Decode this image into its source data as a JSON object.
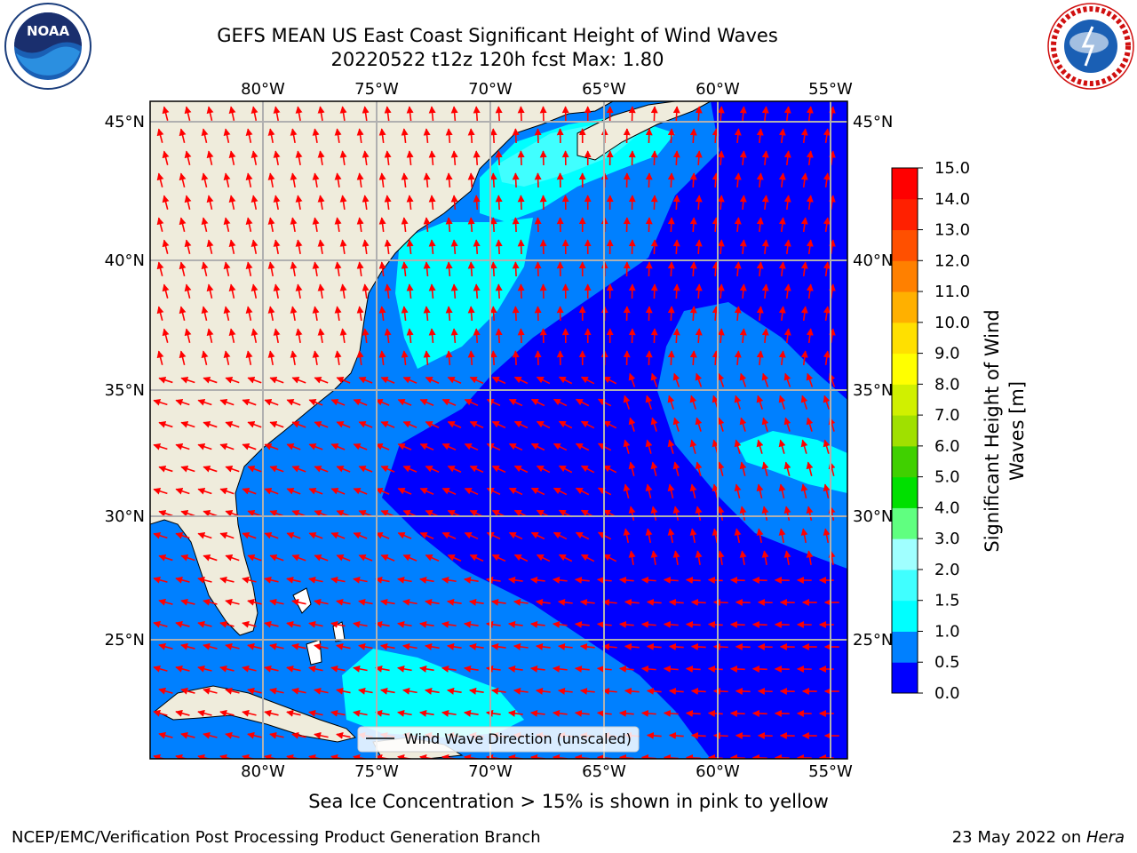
{
  "header": {
    "title_line1": "GEFS MEAN US East Coast Significant Height of Wind Waves",
    "title_line2": "20220522 t12z 120h fcst   Max: 1.80"
  },
  "map": {
    "lon_labels": [
      "80°W",
      "75°W",
      "70°W",
      "65°W",
      "60°W",
      "55°W"
    ],
    "lat_labels": [
      "45°N",
      "40°N",
      "35°N",
      "30°N",
      "25°N"
    ],
    "legend_label": "Wind Wave Direction (unscaled)",
    "colors": {
      "land": "#efecdc",
      "arrow": "#ff0000",
      "grid": "#b0b0b0"
    }
  },
  "colorbar": {
    "label": "Significant Height of Wind Waves [m]",
    "ticks": [
      "0.0",
      "0.5",
      "1.0",
      "1.5",
      "2.0",
      "3.0",
      "4.0",
      "5.0",
      "6.0",
      "7.0",
      "8.0",
      "9.0",
      "10.0",
      "11.0",
      "12.0",
      "13.0",
      "14.0",
      "15.0"
    ],
    "colors": [
      "#0000ff",
      "#0080ff",
      "#00ffff",
      "#40ffff",
      "#a0ffff",
      "#60ff80",
      "#00e000",
      "#40d000",
      "#a0e000",
      "#d0f000",
      "#ffff00",
      "#ffe000",
      "#ffb000",
      "#ff8000",
      "#ff5000",
      "#ff2000",
      "#ff0000"
    ]
  },
  "chart_data": {
    "type": "heatmap",
    "title": "GEFS MEAN US East Coast Significant Height of Wind Waves",
    "subtitle": "20220522 t12z 120h fcst   Max: 1.80",
    "max_value": 1.8,
    "units": "m",
    "x_axis": {
      "ticks": [
        "80°W",
        "75°W",
        "70°W",
        "65°W",
        "60°W",
        "55°W"
      ]
    },
    "y_axis": {
      "ticks": [
        "45°N",
        "40°N",
        "35°N",
        "30°N",
        "25°N"
      ]
    },
    "grid": true,
    "legend_placement": "bottom-right",
    "colorbar_range": [
      0,
      15
    ]
  },
  "footer": {
    "note": "Sea Ice Concentration > 15% is shown in pink to yellow",
    "left": "NCEP/EMC/Verification Post Processing Product Generation Branch",
    "right_prefix": "23 May 2022 on ",
    "right_machine": "Hera"
  },
  "logos": {
    "noaa": "NOAA",
    "nws": "NATIONAL WEATHER SERVICE"
  }
}
